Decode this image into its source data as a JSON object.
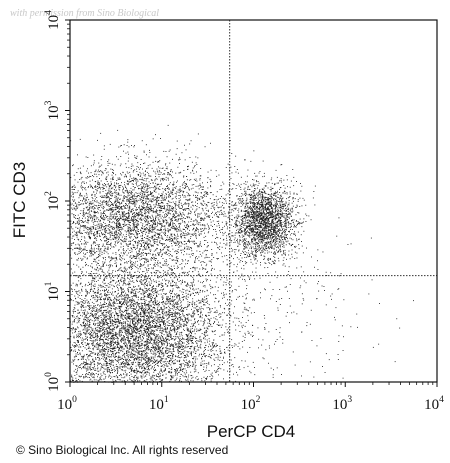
{
  "watermark": "with permission from Sino Biological",
  "copyright": "© Sino Biological Inc. All rights reserved",
  "chart_data": {
    "type": "scatter",
    "subtype": "flow-cytometry-dot-plot",
    "xlabel": "PerCP CD4",
    "ylabel": "FITC CD3",
    "x_scale": "log",
    "y_scale": "log",
    "xlim": [
      1,
      10000
    ],
    "ylim": [
      1,
      10000
    ],
    "x_ticks": [
      {
        "value": 1,
        "base": "10",
        "exp": "0"
      },
      {
        "value": 10,
        "base": "10",
        "exp": "1"
      },
      {
        "value": 100,
        "base": "10",
        "exp": "2"
      },
      {
        "value": 1000,
        "base": "10",
        "exp": "3"
      },
      {
        "value": 10000,
        "base": "10",
        "exp": "4"
      }
    ],
    "y_ticks": [
      {
        "value": 1,
        "base": "10",
        "exp": "0"
      },
      {
        "value": 10,
        "base": "10",
        "exp": "1"
      },
      {
        "value": 100,
        "base": "10",
        "exp": "2"
      },
      {
        "value": 1000,
        "base": "10",
        "exp": "3"
      },
      {
        "value": 10000,
        "base": "10",
        "exp": "4"
      }
    ],
    "gates": {
      "x": 55,
      "y": 15
    },
    "gate_line_style": "dotted",
    "grid": false,
    "legend": "none",
    "point_color": "#1a1a1a",
    "populations": [
      {
        "x_center": 5,
        "y_center": 70,
        "x_spread_decades": 0.55,
        "y_spread_decades": 0.3,
        "count": 4200
      },
      {
        "x_center": 5,
        "y_center": 3.5,
        "x_spread_decades": 0.5,
        "y_spread_decades": 0.4,
        "count": 6500
      },
      {
        "x_center": 130,
        "y_center": 60,
        "x_spread_decades": 0.17,
        "y_spread_decades": 0.2,
        "count": 2200
      },
      {
        "x_center": 150,
        "y_center": 8,
        "x_spread_decades": 0.6,
        "y_spread_decades": 0.5,
        "count": 260
      }
    ]
  }
}
